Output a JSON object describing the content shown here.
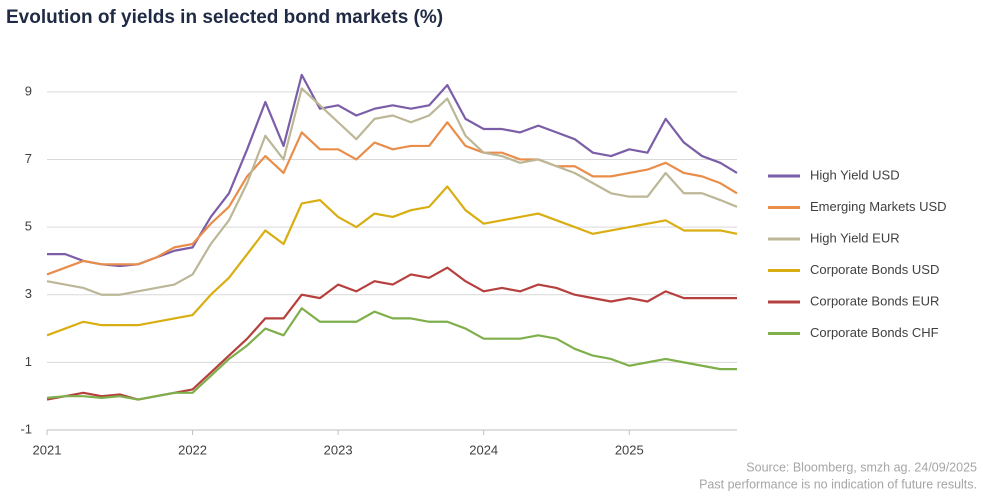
{
  "chart_data": {
    "type": "line",
    "title": "Evolution of yields in selected bond markets (%)",
    "source": "Source: Bloomberg, smzh ag. 24/09/2025",
    "disclaimer": "Past performance is no indication of future results.",
    "x": [
      2021,
      2021.125,
      2021.25,
      2021.375,
      2021.5,
      2021.625,
      2021.75,
      2021.875,
      2022,
      2022.125,
      2022.25,
      2022.375,
      2022.5,
      2022.625,
      2022.75,
      2022.875,
      2023,
      2023.125,
      2023.25,
      2023.375,
      2023.5,
      2023.625,
      2023.75,
      2023.875,
      2024,
      2024.125,
      2024.25,
      2024.375,
      2024.5,
      2024.625,
      2024.75,
      2024.875,
      2025,
      2025.125,
      2025.25,
      2025.375,
      2025.5,
      2025.625,
      2025.74
    ],
    "xlim": [
      2021,
      2025.74
    ],
    "xticks": [
      2021,
      2022,
      2023,
      2024,
      2025
    ],
    "ylim": [
      -1,
      10
    ],
    "yticks": [
      -1,
      1,
      3,
      5,
      7,
      9
    ],
    "grid": true,
    "legend": "right",
    "series": [
      {
        "name": "High Yield USD",
        "color": "#7b5ea7",
        "values": [
          4.2,
          4.2,
          4.0,
          3.9,
          3.85,
          3.9,
          4.1,
          4.3,
          4.4,
          5.3,
          6.0,
          7.3,
          8.7,
          7.4,
          9.5,
          8.5,
          8.6,
          8.3,
          8.5,
          8.6,
          8.5,
          8.6,
          9.2,
          8.2,
          7.9,
          7.9,
          7.8,
          8.0,
          7.8,
          7.6,
          7.2,
          7.1,
          7.3,
          7.2,
          8.2,
          7.5,
          7.1,
          6.9,
          6.6
        ]
      },
      {
        "name": "Emerging Markets USD",
        "color": "#e98d4b",
        "values": [
          3.6,
          3.8,
          4.0,
          3.9,
          3.9,
          3.9,
          4.1,
          4.4,
          4.5,
          5.1,
          5.6,
          6.5,
          7.1,
          6.6,
          7.8,
          7.3,
          7.3,
          7.0,
          7.5,
          7.3,
          7.4,
          7.4,
          8.1,
          7.4,
          7.2,
          7.2,
          7.0,
          7.0,
          6.8,
          6.8,
          6.5,
          6.5,
          6.6,
          6.7,
          6.9,
          6.6,
          6.5,
          6.3,
          6.0
        ]
      },
      {
        "name": "High Yield EUR",
        "color": "#bcb797",
        "values": [
          3.4,
          3.3,
          3.2,
          3.0,
          3.0,
          3.1,
          3.2,
          3.3,
          3.6,
          4.5,
          5.2,
          6.3,
          7.7,
          7.0,
          9.1,
          8.6,
          8.1,
          7.6,
          8.2,
          8.3,
          8.1,
          8.3,
          8.8,
          7.7,
          7.2,
          7.1,
          6.9,
          7.0,
          6.8,
          6.6,
          6.3,
          6.0,
          5.9,
          5.9,
          6.6,
          6.0,
          6.0,
          5.8,
          5.6
        ]
      },
      {
        "name": "Corporate Bonds USD",
        "color": "#d9ae12",
        "values": [
          1.8,
          2.0,
          2.2,
          2.1,
          2.1,
          2.1,
          2.2,
          2.3,
          2.4,
          3.0,
          3.5,
          4.2,
          4.9,
          4.5,
          5.7,
          5.8,
          5.3,
          5.0,
          5.4,
          5.3,
          5.5,
          5.6,
          6.2,
          5.5,
          5.1,
          5.2,
          5.3,
          5.4,
          5.2,
          5.0,
          4.8,
          4.9,
          5.0,
          5.1,
          5.2,
          4.9,
          4.9,
          4.9,
          4.8
        ]
      },
      {
        "name": "Corporate Bonds EUR",
        "color": "#b5403d",
        "values": [
          -0.1,
          0.0,
          0.1,
          0.0,
          0.05,
          -0.1,
          0.0,
          0.1,
          0.2,
          0.7,
          1.2,
          1.7,
          2.3,
          2.3,
          3.0,
          2.9,
          3.3,
          3.1,
          3.4,
          3.3,
          3.6,
          3.5,
          3.8,
          3.4,
          3.1,
          3.2,
          3.1,
          3.3,
          3.2,
          3.0,
          2.9,
          2.8,
          2.9,
          2.8,
          3.1,
          2.9,
          2.9,
          2.9,
          2.9
        ]
      },
      {
        "name": "Corporate Bonds CHF",
        "color": "#7faf4b",
        "values": [
          -0.05,
          0.0,
          0.0,
          -0.05,
          0.0,
          -0.1,
          0.0,
          0.1,
          0.1,
          0.6,
          1.1,
          1.5,
          2.0,
          1.8,
          2.6,
          2.2,
          2.2,
          2.2,
          2.5,
          2.3,
          2.3,
          2.2,
          2.2,
          2.0,
          1.7,
          1.7,
          1.7,
          1.8,
          1.7,
          1.4,
          1.2,
          1.1,
          0.9,
          1.0,
          1.1,
          1.0,
          0.9,
          0.8,
          0.8
        ]
      }
    ]
  }
}
